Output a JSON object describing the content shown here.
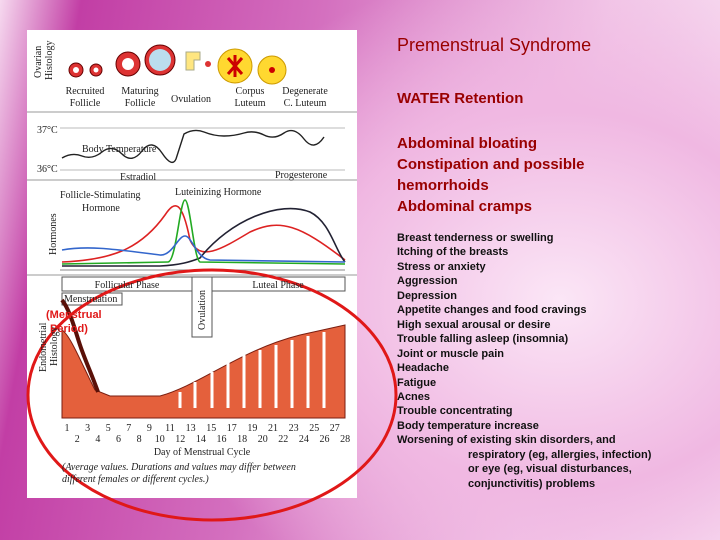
{
  "title": "Premenstrual Syndrome",
  "subtitle": "WATER Retention",
  "major_symptoms": [
    "Abdominal bloating",
    "Constipation and possible",
    "hemorrhoids",
    "Abdominal cramps"
  ],
  "symptoms": [
    "Breast tenderness or swelling",
    "Itching of the breasts",
    "Stress or anxiety",
    "Aggression",
    "Depression",
    "Appetite changes and food cravings",
    "High sexual arousal or desire",
    "Trouble falling asleep (insomnia)",
    "Joint or muscle pain",
    "Headache",
    "Fatigue",
    "Acnes",
    "Trouble concentrating",
    "Body temperature increase",
    "Worsening of existing skin disorders, and",
    "respiratory     (eg, allergies, infection)",
    "or eye (eg, visual disturbances,",
    "conjunctivitis) problems"
  ],
  "diagram": {
    "ovarian_label": [
      "Ovarian",
      "Histology"
    ],
    "stages": [
      [
        "Recruited",
        "Follicle"
      ],
      [
        "Maturing",
        "Follicle"
      ],
      [
        "Ovulation"
      ],
      [
        "Corpus",
        "Luteum"
      ],
      [
        "Degenerate",
        "C. Luteum"
      ]
    ],
    "temp_high": "37°C",
    "temp_low": "36°C",
    "body_temperature": "Body Temperature",
    "estradiol": "Estradiol",
    "progesterone": "Progesterone",
    "lh": "Luteinizing Hormone",
    "fsh": [
      "Follicle-Stimulating",
      "Hormone"
    ],
    "hormones": "Hormones",
    "follicular_phase": "Follicular Phase",
    "luteal_phase": "Luteal Phase",
    "ovulation_bar": "Ovulation",
    "menstruation": "Menstruation",
    "menstrual_period": [
      "(Menstrual",
      "Period)"
    ],
    "endometrial_label": [
      "Endometrial",
      "Histology"
    ],
    "days_odd": [
      1,
      3,
      5,
      7,
      9,
      11,
      13,
      15,
      17,
      19,
      21,
      23,
      25,
      27
    ],
    "days_even": [
      2,
      4,
      6,
      8,
      10,
      12,
      14,
      16,
      18,
      20,
      22,
      24,
      26,
      28
    ],
    "x_label": "Day of Menstrual Cycle",
    "note": [
      "(Average values. Durations and values may differ between",
      "different females or different cycles.)"
    ]
  }
}
